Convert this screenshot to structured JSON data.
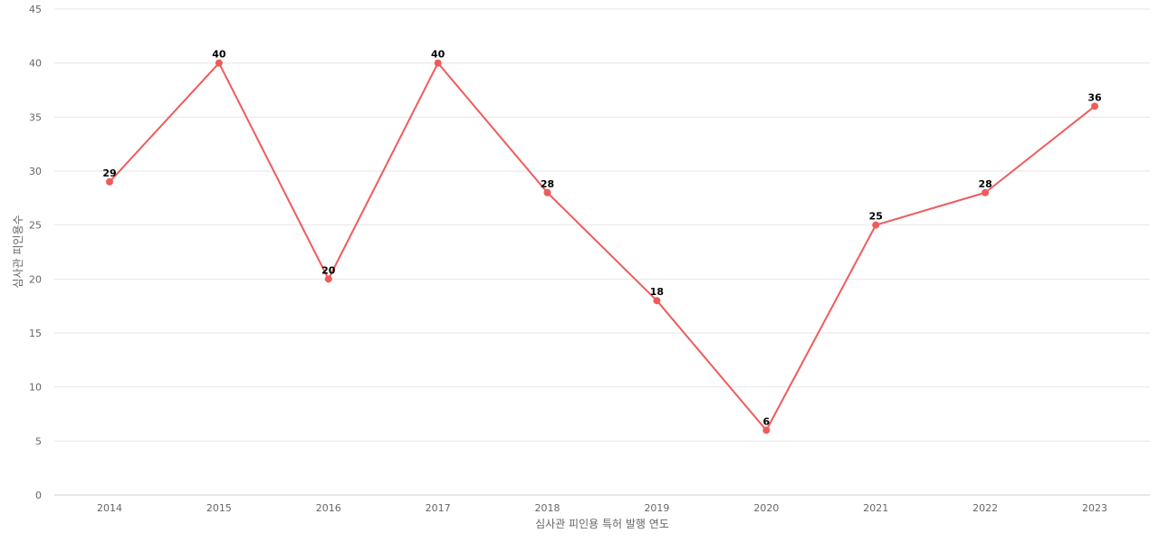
{
  "chart_data": {
    "type": "line",
    "title": "",
    "xlabel": "심사관 피인용 특허 발행 연도",
    "ylabel": "심사관 피인용수",
    "categories": [
      "2014",
      "2015",
      "2016",
      "2017",
      "2018",
      "2019",
      "2020",
      "2021",
      "2022",
      "2023"
    ],
    "series": [
      {
        "values": [
          29,
          40,
          20,
          40,
          28,
          18,
          6,
          25,
          28,
          36
        ],
        "color": "#ef5b5b"
      }
    ],
    "ylim": [
      0,
      45
    ],
    "yticks": [
      0,
      5,
      10,
      15,
      20,
      25,
      30,
      35,
      40,
      45
    ],
    "grid": true,
    "legend": "none",
    "data_labels": true
  }
}
